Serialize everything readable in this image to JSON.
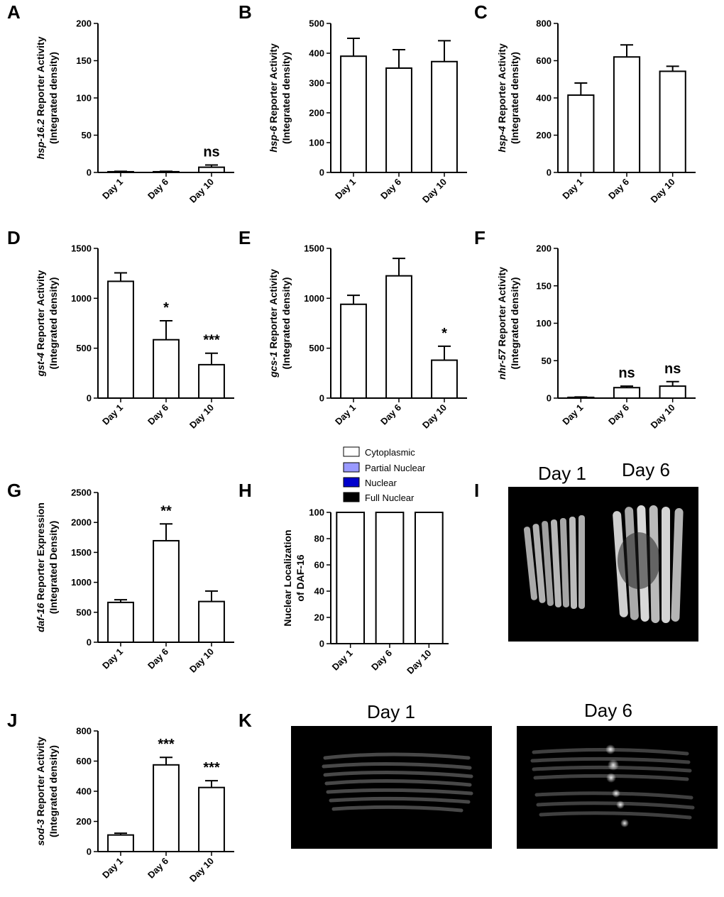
{
  "panel_labels": [
    "A",
    "B",
    "C",
    "D",
    "E",
    "F",
    "G",
    "H",
    "I",
    "J",
    "K"
  ],
  "chart_data": [
    {
      "panel": "A",
      "type": "bar",
      "categories": [
        "Day 1",
        "Day 6",
        "Day 10"
      ],
      "values": [
        1,
        1,
        7
      ],
      "errors": [
        0.5,
        0.5,
        3
      ],
      "ylim": [
        0,
        200
      ],
      "ticks": [
        0,
        50,
        100,
        150,
        200
      ],
      "ylabel_gene": "hsp-16.2",
      "ylabel_rest": " Reporter Activity",
      "ylabel2": "(Integrated density)",
      "annotations": [
        "",
        "",
        "ns"
      ]
    },
    {
      "panel": "B",
      "type": "bar",
      "categories": [
        "Day 1",
        "Day 6",
        "Day 10"
      ],
      "values": [
        390,
        350,
        372
      ],
      "errors": [
        60,
        62,
        70
      ],
      "ylim": [
        0,
        500
      ],
      "ticks": [
        0,
        100,
        200,
        300,
        400,
        500
      ],
      "ylabel_gene": "hsp-6",
      "ylabel_rest": " Reporter Activity",
      "ylabel2": "(Integrated density)",
      "annotations": [
        "",
        "",
        ""
      ]
    },
    {
      "panel": "C",
      "type": "bar",
      "categories": [
        "Day 1",
        "Day 6",
        "Day 10"
      ],
      "values": [
        415,
        620,
        543
      ],
      "errors": [
        65,
        65,
        27
      ],
      "ylim": [
        0,
        800
      ],
      "ticks": [
        0,
        200,
        400,
        600,
        800
      ],
      "ylabel_gene": "hsp-4",
      "ylabel_rest": " Reporter Activity",
      "ylabel2": "(Integrated density)",
      "annotations": [
        "",
        "",
        ""
      ]
    },
    {
      "panel": "D",
      "type": "bar",
      "categories": [
        "Day 1",
        "Day 6",
        "Day 10"
      ],
      "values": [
        1170,
        585,
        335
      ],
      "errors": [
        85,
        190,
        115
      ],
      "ylim": [
        0,
        1500
      ],
      "ticks": [
        0,
        500,
        1000,
        1500
      ],
      "ylabel_gene": "gst-4",
      "ylabel_rest": " Reporter Activity",
      "ylabel2": "(Integrated density)",
      "annotations": [
        "",
        "*",
        "***"
      ]
    },
    {
      "panel": "E",
      "type": "bar",
      "categories": [
        "Day 1",
        "Day 6",
        "Day 10"
      ],
      "values": [
        940,
        1225,
        380
      ],
      "errors": [
        90,
        175,
        140
      ],
      "ylim": [
        0,
        1500
      ],
      "ticks": [
        0,
        500,
        1000,
        1500
      ],
      "ylabel_gene": "gcs-1",
      "ylabel_rest": " Reporter Activity",
      "ylabel2": "(Integrated density)",
      "annotations": [
        "",
        "",
        "*"
      ]
    },
    {
      "panel": "F",
      "type": "bar",
      "categories": [
        "Day 1",
        "Day 6",
        "Day 10"
      ],
      "values": [
        1,
        14,
        16
      ],
      "errors": [
        0.5,
        2,
        6
      ],
      "ylim": [
        0,
        200
      ],
      "ticks": [
        0,
        50,
        100,
        150,
        200
      ],
      "ylabel_gene": "nhr-57",
      "ylabel_rest": " Reporter Activity",
      "ylabel2": "(Integrated density)",
      "annotations": [
        "",
        "ns",
        "ns"
      ]
    },
    {
      "panel": "G",
      "type": "bar",
      "categories": [
        "Day 1",
        "Day 6",
        "Day 10"
      ],
      "values": [
        665,
        1695,
        680
      ],
      "errors": [
        45,
        280,
        175
      ],
      "ylim": [
        0,
        2500
      ],
      "ticks": [
        0,
        500,
        1000,
        1500,
        2000,
        2500
      ],
      "ylabel_gene": "daf-16",
      "ylabel_rest": " Reporter Expression",
      "ylabel2": "(Integrated Density)",
      "annotations": [
        "",
        "**",
        ""
      ]
    },
    {
      "panel": "H",
      "type": "stacked-bar",
      "categories": [
        "Day 1",
        "Day 6",
        "Day 10"
      ],
      "values": [
        100,
        100,
        100
      ],
      "errors": [
        0,
        0,
        0
      ],
      "ylim": [
        0,
        100
      ],
      "ticks": [
        0,
        20,
        40,
        60,
        80,
        100
      ],
      "ylabel_gene": "",
      "ylabel_rest": "Nuclear Localization",
      "ylabel2": "of DAF-16",
      "annotations": [
        "",
        "",
        ""
      ],
      "legend": [
        {
          "label": "Cytoplasmic",
          "color": "#ffffff"
        },
        {
          "label": "Partial Nuclear",
          "color": "#9999ff"
        },
        {
          "label": "Nuclear",
          "color": "#0000cc"
        },
        {
          "label": "Full Nuclear",
          "color": "#000000"
        }
      ]
    },
    {
      "panel": "J",
      "type": "bar",
      "categories": [
        "Day 1",
        "Day 6",
        "Day 10"
      ],
      "values": [
        110,
        575,
        425
      ],
      "errors": [
        12,
        50,
        45
      ],
      "ylim": [
        0,
        800
      ],
      "ticks": [
        0,
        200,
        400,
        600,
        800
      ],
      "ylabel_gene": "sod-3",
      "ylabel_rest": " Reporter Activity",
      "ylabel2": "(Integrated density)",
      "annotations": [
        "",
        "***",
        "***"
      ]
    }
  ],
  "images": {
    "I": {
      "labels": [
        "Day 1",
        "Day 6"
      ]
    },
    "K": {
      "labels": [
        "Day 1",
        "Day 6"
      ]
    }
  }
}
